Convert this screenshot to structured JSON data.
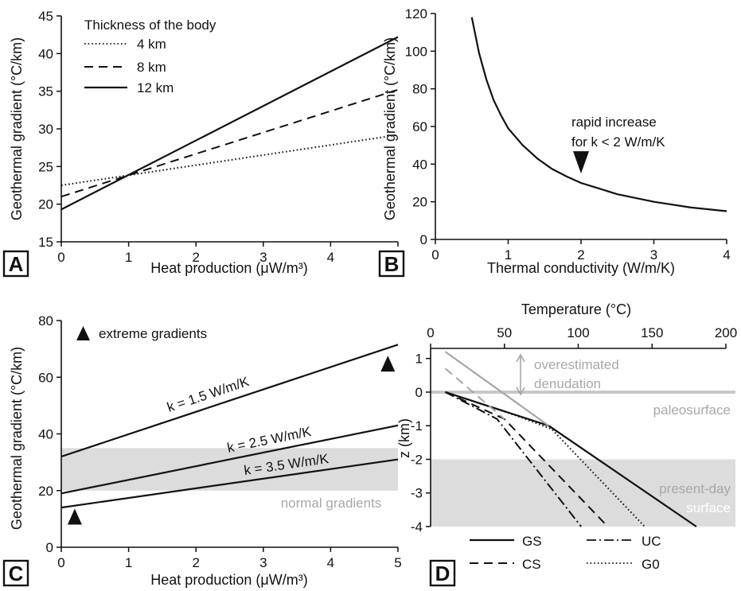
{
  "colors": {
    "line": "#111111",
    "gray_line": "#a6a6a6",
    "band": "#dcdcdc",
    "gray_text": "#a8a8a8"
  },
  "chart_data": [
    {
      "panel": "A",
      "type": "line",
      "xlabel": "Heat production (μW/m³)",
      "ylabel": "Geothermal gradient (°C/km)",
      "xlim": [
        0,
        5
      ],
      "ylim": [
        15,
        45
      ],
      "xticks": [
        0,
        1,
        2,
        3,
        4,
        5
      ],
      "yticks": [
        15,
        20,
        25,
        30,
        35,
        40,
        45
      ],
      "legend_title": "Thickness of the body",
      "legend_position": "top-left",
      "series": [
        {
          "name": "4 km",
          "style": "dotted",
          "x": [
            0,
            5
          ],
          "y": [
            22.5,
            29.2
          ]
        },
        {
          "name": "8 km",
          "style": "dashed",
          "x": [
            0,
            5
          ],
          "y": [
            21.0,
            35.2
          ]
        },
        {
          "name": "12 km",
          "style": "solid",
          "x": [
            0,
            5
          ],
          "y": [
            19.3,
            42.2
          ]
        }
      ]
    },
    {
      "panel": "B",
      "type": "line",
      "xlabel": "Thermal conductivity (W/m/K)",
      "ylabel": "Geothermal gradient (°C/km)",
      "xlim": [
        0,
        4
      ],
      "ylim": [
        0,
        120
      ],
      "xticks": [
        0,
        1,
        2,
        3,
        4
      ],
      "yticks": [
        0,
        20,
        40,
        60,
        80,
        100,
        120
      ],
      "series": [
        {
          "style": "solid",
          "x": [
            0.5,
            0.6,
            0.7,
            0.8,
            0.9,
            1.0,
            1.2,
            1.4,
            1.6,
            1.8,
            2.0,
            2.25,
            2.5,
            2.75,
            3.0,
            3.25,
            3.5,
            3.75,
            4.0
          ],
          "y": [
            118,
            99,
            85,
            74,
            66,
            59,
            50,
            43,
            37.5,
            33.5,
            30,
            27,
            24,
            22,
            20,
            18.5,
            17,
            16,
            15
          ]
        }
      ],
      "annotations": [
        {
          "text": "rapid increase",
          "x": 2.0,
          "y": 52
        },
        {
          "text": "for k < 2 W/m/K",
          "x": 2.0,
          "y": 43
        }
      ],
      "marker": {
        "shape": "down-triangle",
        "x": 2.0,
        "y": 35
      }
    },
    {
      "panel": "C",
      "type": "line",
      "xlabel": "Heat production (μW/m³)",
      "ylabel": "Geothermal gradient (°C/km)",
      "xlim": [
        0,
        5
      ],
      "ylim": [
        0,
        80
      ],
      "xticks": [
        0,
        1,
        2,
        3,
        4,
        5
      ],
      "yticks": [
        0,
        20,
        40,
        60,
        80
      ],
      "band": {
        "label": "normal gradients",
        "y": [
          20,
          35
        ]
      },
      "series": [
        {
          "label": "k = 1.5 W/m/K",
          "style": "solid",
          "x": [
            0,
            5
          ],
          "y": [
            32,
            71.5
          ]
        },
        {
          "label": "k = 2.5 W/m/K",
          "style": "solid",
          "x": [
            0,
            5
          ],
          "y": [
            19,
            43
          ]
        },
        {
          "label": "k = 3.5 W/m/K",
          "style": "solid",
          "x": [
            0,
            5
          ],
          "y": [
            14,
            31
          ]
        }
      ],
      "annotations": [
        {
          "text": "extreme gradients"
        }
      ],
      "markers": [
        {
          "shape": "up-triangle",
          "x": 4.85,
          "y": 62
        },
        {
          "shape": "up-triangle",
          "x": 0.2,
          "y": 8
        },
        {
          "shape": "up-triangle",
          "legend": true
        }
      ]
    },
    {
      "panel": "D",
      "type": "line",
      "xlabel": "Temperature (°C)",
      "ylabel": "z (km)",
      "xlim": [
        0,
        200
      ],
      "ylim": [
        -4,
        1.3
      ],
      "xticks": [
        0,
        50,
        100,
        150,
        200
      ],
      "yticks": [
        1,
        0,
        -1,
        -2,
        -3,
        -4
      ],
      "band": {
        "label_line1": "present-day",
        "label_line2": "surface",
        "y": [
          -4,
          -2
        ]
      },
      "paleosurface": {
        "label": "paleosurface",
        "y": 0
      },
      "denudation": {
        "label_line1": "overestimated",
        "label_line2": "denudation",
        "y": [
          0.05,
          1.2
        ]
      },
      "series": [
        {
          "name": "GS",
          "style": "solid",
          "x": [
            10,
            80,
            180
          ],
          "y": [
            0,
            -1.0,
            -4.0
          ]
        },
        {
          "name": "CS",
          "style": "dashed",
          "x": [
            10,
            50,
            120
          ],
          "y": [
            0,
            -0.8,
            -4.0
          ]
        },
        {
          "name": "UC",
          "style": "dashdot",
          "x": [
            10,
            45,
            102
          ],
          "y": [
            0,
            -0.8,
            -4.0
          ]
        },
        {
          "name": "G0",
          "style": "dotted",
          "x": [
            10,
            58,
            82,
            145
          ],
          "y": [
            0,
            -0.7,
            -1.1,
            -4.0
          ]
        },
        {
          "name": "",
          "style": "gray-solid",
          "x": [
            10,
            80
          ],
          "y": [
            1.2,
            -1.0
          ]
        },
        {
          "name": "",
          "style": "gray-dashed",
          "x": [
            10,
            50
          ],
          "y": [
            0.7,
            -0.8
          ]
        }
      ],
      "legend_position": "bottom"
    }
  ],
  "panel_labels": [
    "A",
    "B",
    "C",
    "D"
  ]
}
